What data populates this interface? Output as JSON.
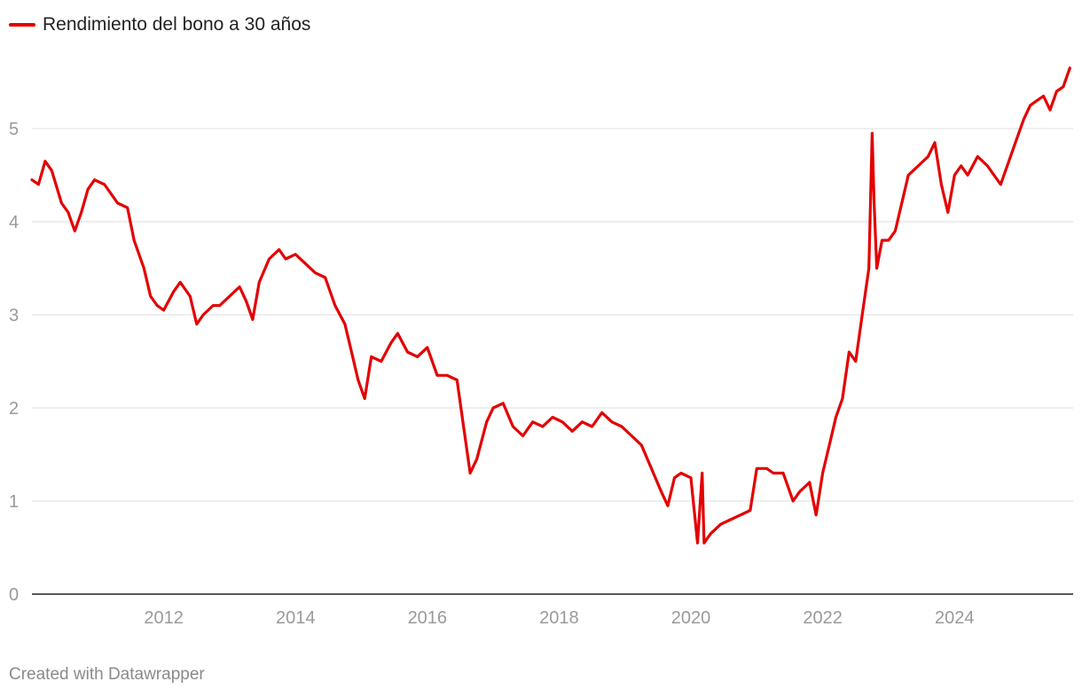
{
  "chart_data": {
    "type": "line",
    "title": "",
    "xlabel": "",
    "ylabel": "",
    "xlim": [
      2010.0,
      2025.8
    ],
    "ylim": [
      0,
      6
    ],
    "y_ticks": [
      0,
      1,
      2,
      3,
      4,
      5
    ],
    "x_ticks": [
      2012,
      2014,
      2016,
      2018,
      2020,
      2022,
      2024
    ],
    "grid": "horizontal",
    "legend_position": "top-left",
    "series": [
      {
        "name": "Rendimiento del bono a 30 años",
        "color": "#e30000",
        "x": [
          2010.0,
          2010.1,
          2010.2,
          2010.3,
          2010.45,
          2010.55,
          2010.65,
          2010.75,
          2010.85,
          2010.95,
          2011.1,
          2011.2,
          2011.3,
          2011.45,
          2011.55,
          2011.7,
          2011.8,
          2011.9,
          2012.0,
          2012.15,
          2012.25,
          2012.4,
          2012.5,
          2012.6,
          2012.75,
          2012.85,
          2013.0,
          2013.15,
          2013.25,
          2013.35,
          2013.45,
          2013.6,
          2013.75,
          2013.85,
          2014.0,
          2014.15,
          2014.3,
          2014.45,
          2014.6,
          2014.75,
          2014.85,
          2014.95,
          2015.05,
          2015.15,
          2015.3,
          2015.45,
          2015.55,
          2015.7,
          2015.85,
          2016.0,
          2016.15,
          2016.3,
          2016.45,
          2016.55,
          2016.65,
          2016.75,
          2016.9,
          2017.0,
          2017.15,
          2017.3,
          2017.45,
          2017.6,
          2017.75,
          2017.9,
          2018.05,
          2018.2,
          2018.35,
          2018.5,
          2018.65,
          2018.8,
          2018.95,
          2019.1,
          2019.25,
          2019.4,
          2019.55,
          2019.65,
          2019.75,
          2019.85,
          2020.0,
          2020.1,
          2020.17,
          2020.2,
          2020.25,
          2020.3,
          2020.45,
          2020.6,
          2020.75,
          2020.9,
          2021.0,
          2021.15,
          2021.25,
          2021.4,
          2021.55,
          2021.65,
          2021.8,
          2021.9,
          2022.0,
          2022.1,
          2022.2,
          2022.3,
          2022.4,
          2022.5,
          2022.6,
          2022.7,
          2022.75,
          2022.78,
          2022.82,
          2022.9,
          2023.0,
          2023.1,
          2023.2,
          2023.3,
          2023.45,
          2023.6,
          2023.7,
          2023.8,
          2023.9,
          2024.0,
          2024.1,
          2024.2,
          2024.35,
          2024.5,
          2024.6,
          2024.7,
          2024.85,
          2024.95,
          2025.05,
          2025.15,
          2025.25,
          2025.35,
          2025.45,
          2025.55,
          2025.65,
          2025.75
        ],
        "values": [
          4.45,
          4.4,
          4.65,
          4.55,
          4.2,
          4.1,
          3.9,
          4.1,
          4.35,
          4.45,
          4.4,
          4.3,
          4.2,
          4.15,
          3.8,
          3.5,
          3.2,
          3.1,
          3.05,
          3.25,
          3.35,
          3.2,
          2.9,
          3.0,
          3.1,
          3.1,
          3.2,
          3.3,
          3.15,
          2.95,
          3.35,
          3.6,
          3.7,
          3.6,
          3.65,
          3.55,
          3.45,
          3.4,
          3.1,
          2.9,
          2.6,
          2.3,
          2.1,
          2.55,
          2.5,
          2.7,
          2.8,
          2.6,
          2.55,
          2.65,
          2.35,
          2.35,
          2.3,
          1.8,
          1.3,
          1.45,
          1.85,
          2.0,
          2.05,
          1.8,
          1.7,
          1.85,
          1.8,
          1.9,
          1.85,
          1.75,
          1.85,
          1.8,
          1.95,
          1.85,
          1.8,
          1.7,
          1.6,
          1.35,
          1.1,
          0.95,
          1.25,
          1.3,
          1.25,
          0.55,
          1.3,
          0.55,
          0.6,
          0.65,
          0.75,
          0.8,
          0.85,
          0.9,
          1.35,
          1.35,
          1.3,
          1.3,
          1.0,
          1.1,
          1.2,
          0.85,
          1.3,
          1.6,
          1.9,
          2.1,
          2.6,
          2.5,
          3.0,
          3.5,
          4.95,
          4.2,
          3.5,
          3.8,
          3.8,
          3.9,
          4.2,
          4.5,
          4.6,
          4.7,
          4.85,
          4.4,
          4.1,
          4.5,
          4.6,
          4.5,
          4.7,
          4.6,
          4.5,
          4.4,
          4.7,
          4.9,
          5.1,
          5.25,
          5.3,
          5.35,
          5.2,
          5.4,
          5.45,
          5.65
        ]
      }
    ]
  },
  "footer": {
    "credit": "Created with Datawrapper"
  }
}
